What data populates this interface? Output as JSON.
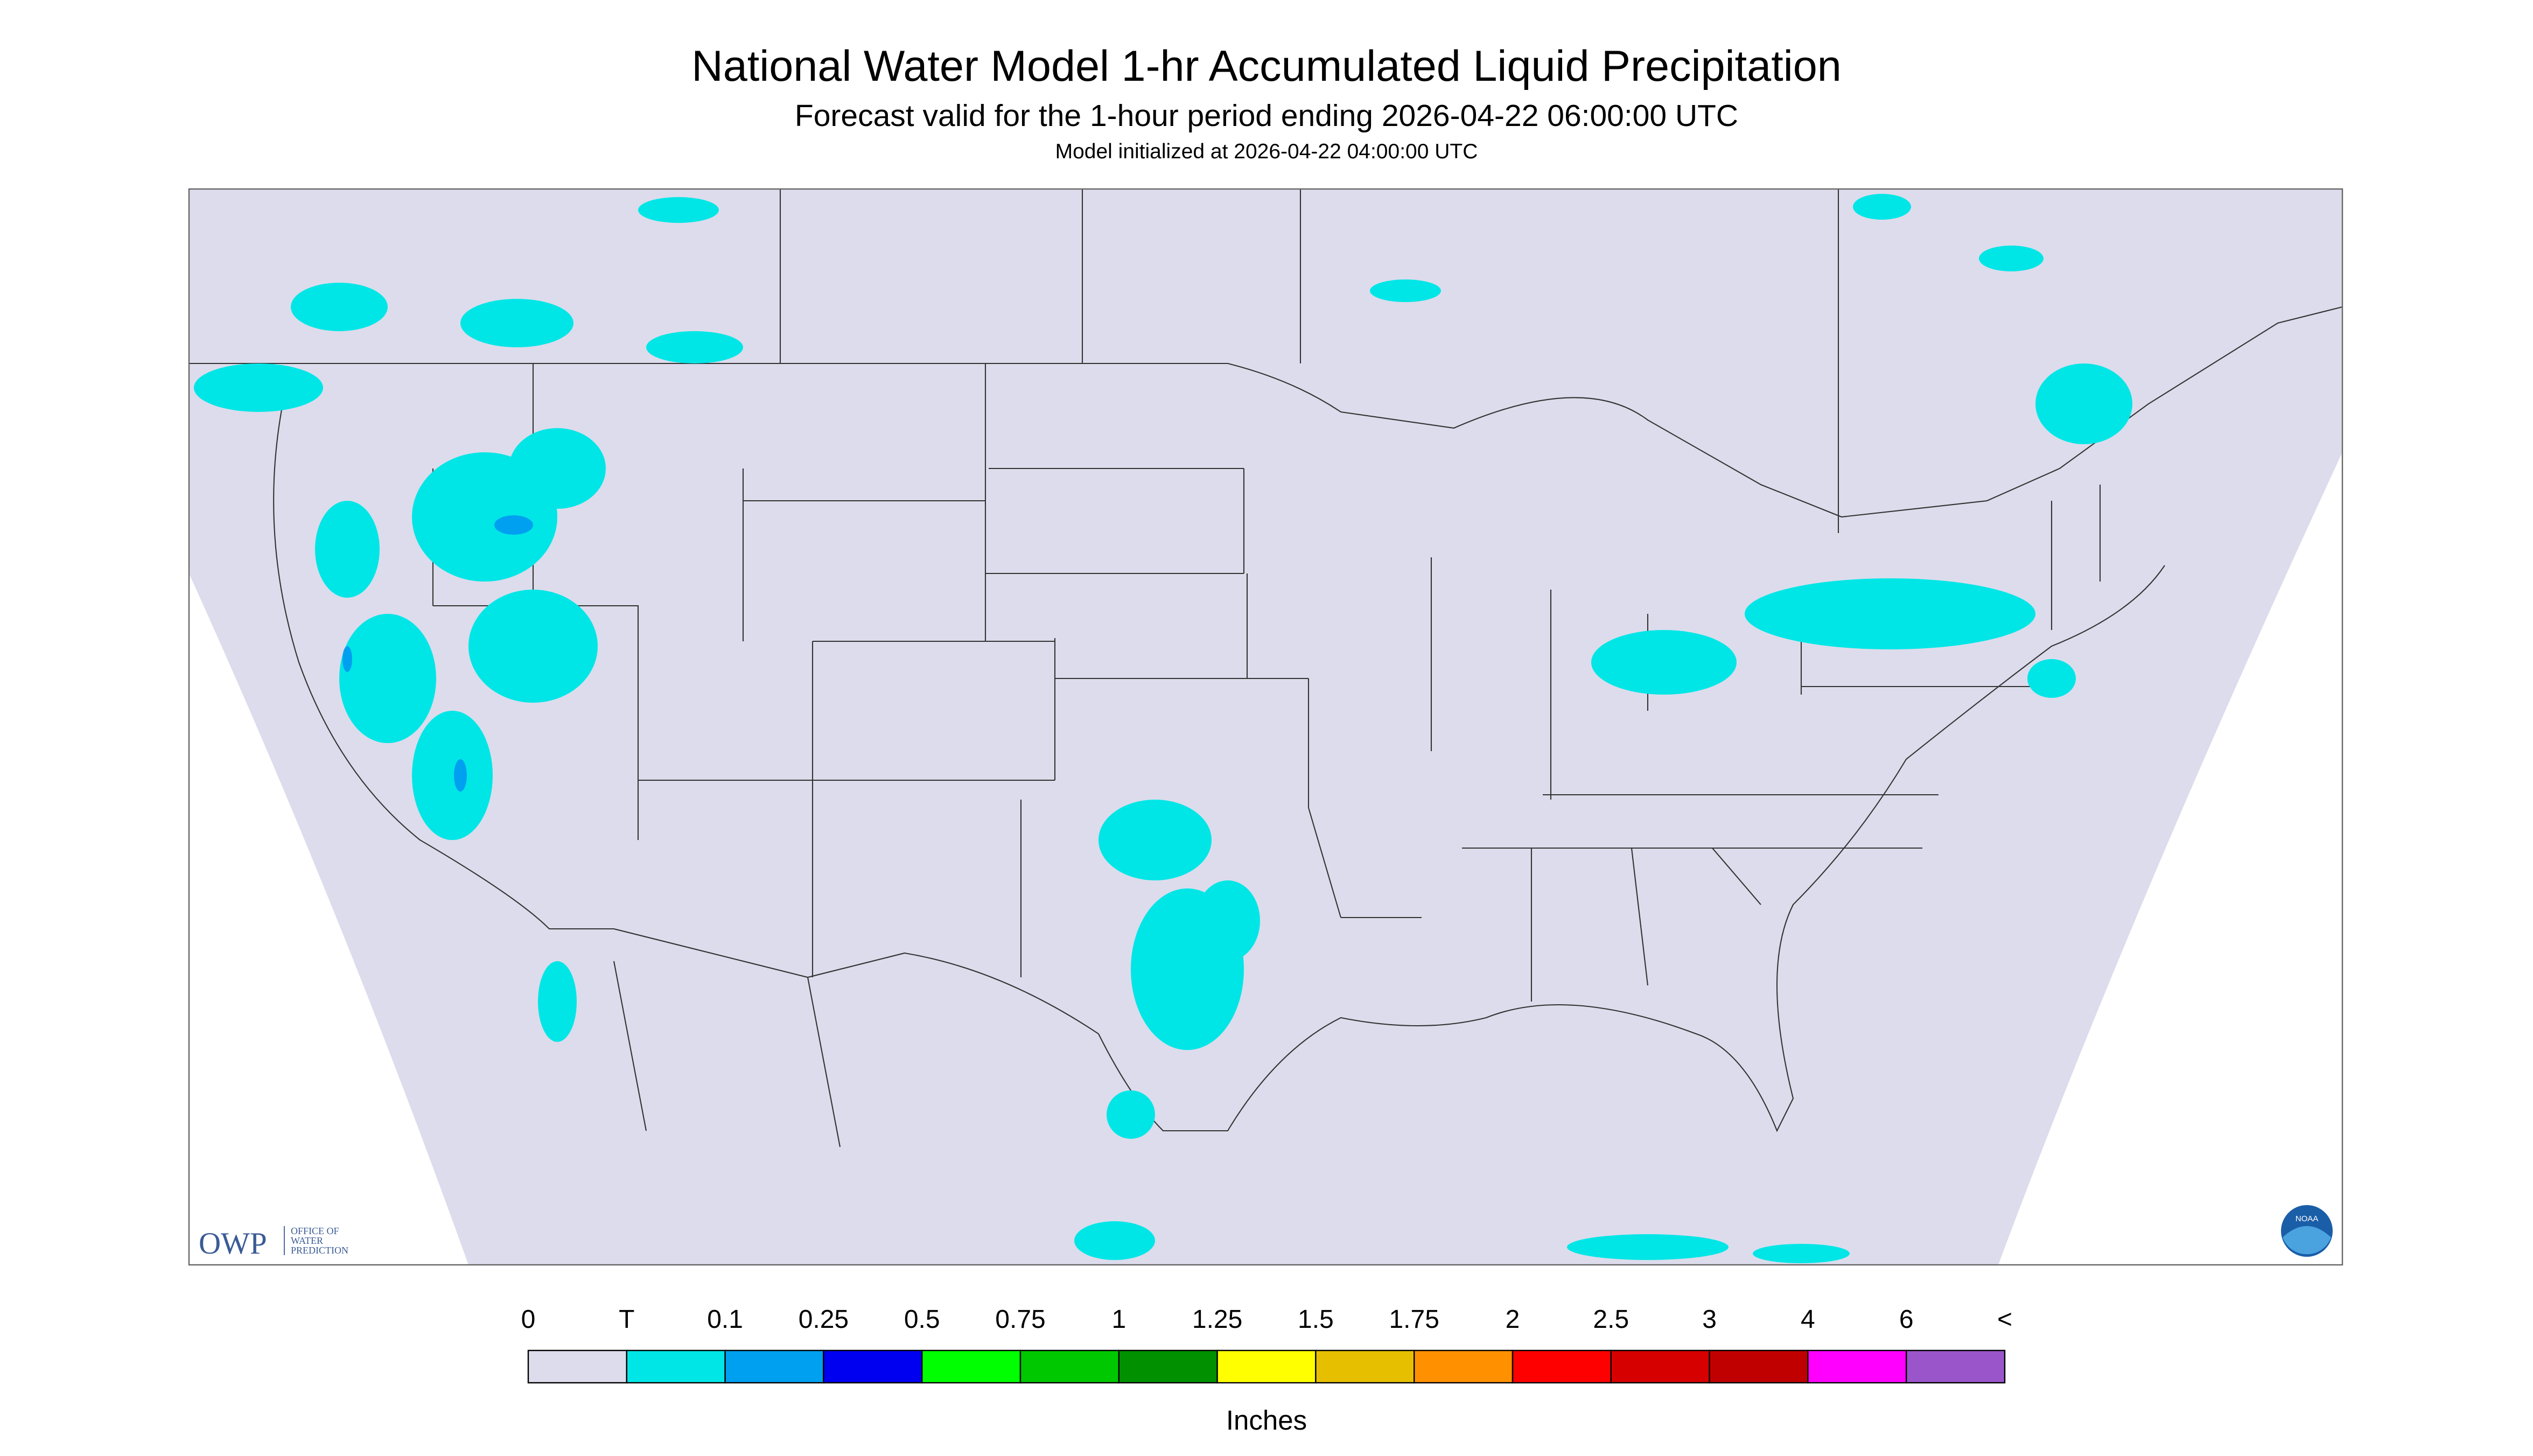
{
  "header": {
    "title": "National Water Model 1-hr Accumulated Liquid Precipitation",
    "subtitle": "Forecast valid for the 1-hour period ending 2026-04-22 06:00:00 UTC",
    "note": "Model initialized at 2026-04-22 04:00:00 UTC"
  },
  "logos": {
    "owp": "OWP",
    "owp_text": [
      "OFFICE OF",
      "WATER",
      "PREDICTION"
    ],
    "noaa": "NOAA"
  },
  "legend": {
    "labels": [
      "0",
      "T",
      "0.1",
      "0.25",
      "0.5",
      "0.75",
      "1",
      "1.25",
      "1.5",
      "1.75",
      "2",
      "2.5",
      "3",
      "4",
      "6",
      "<"
    ],
    "colors": [
      "#dcdcec",
      "#00e6e6",
      "#00a0f0",
      "#0000f0",
      "#00ff00",
      "#00c800",
      "#009000",
      "#ffff00",
      "#e6c000",
      "#ff9000",
      "#ff0000",
      "#d60000",
      "#c00000",
      "#ff00ff",
      "#9955c9"
    ],
    "unit": "Inches"
  }
}
